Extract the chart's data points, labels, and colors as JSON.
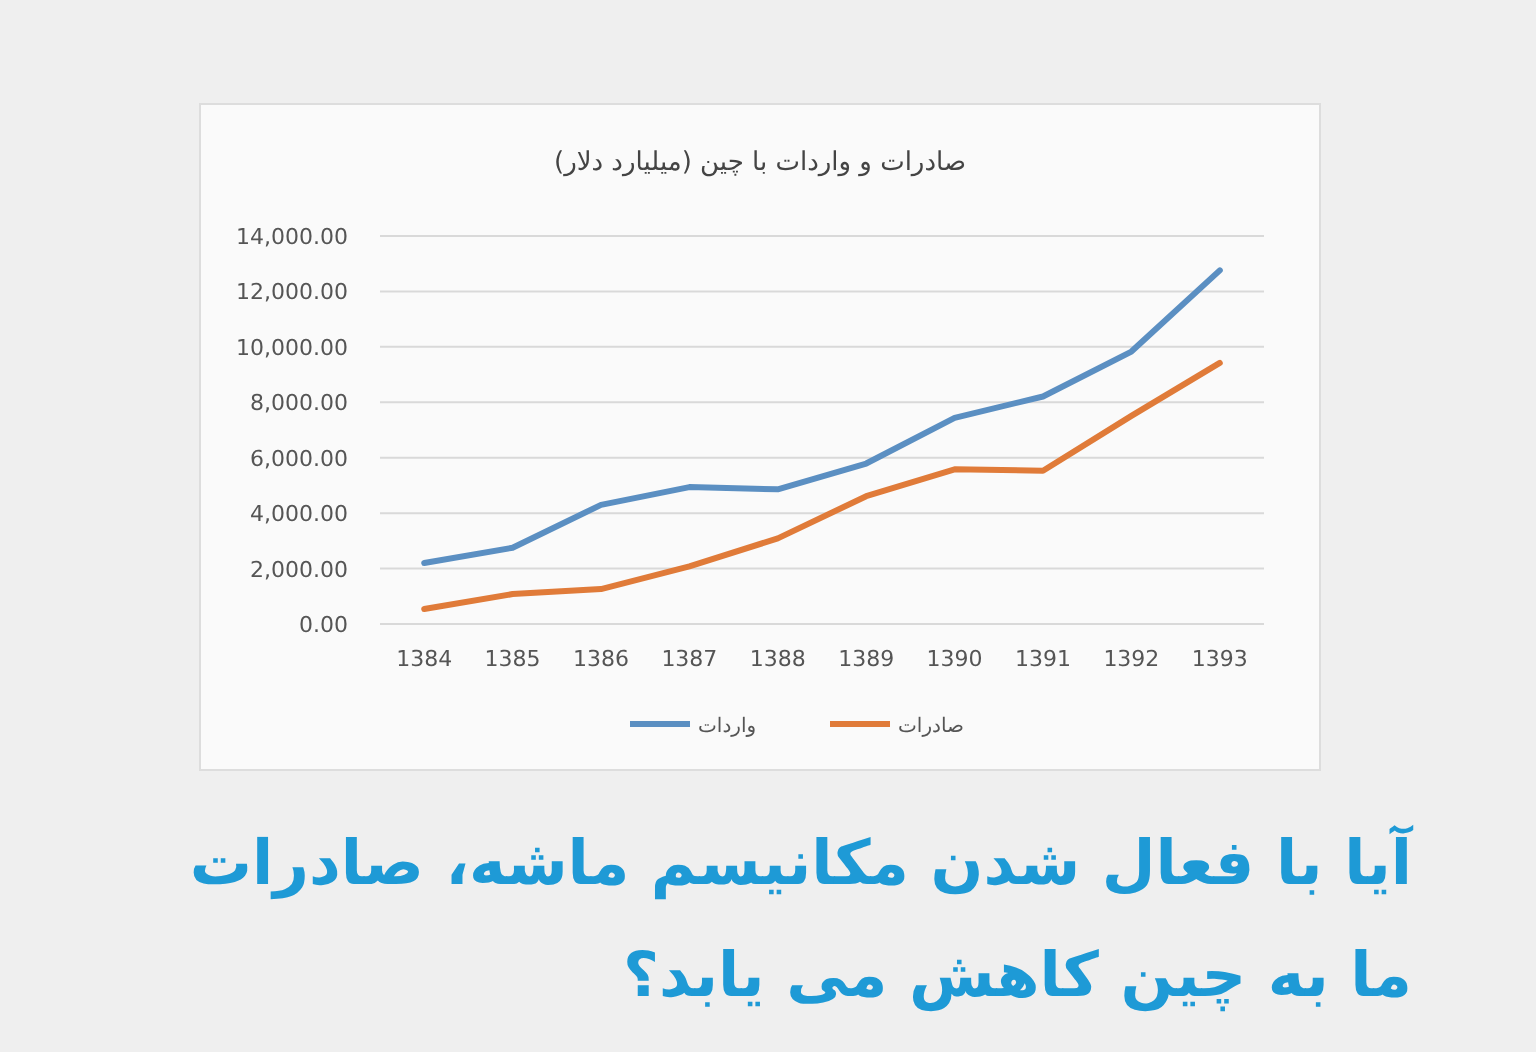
{
  "chart_data": {
    "type": "line",
    "title": "صادرات و واردات با چین (میلیارد دلار)",
    "categories": [
      "1384",
      "1385",
      "1386",
      "1387",
      "1388",
      "1389",
      "1390",
      "1391",
      "1392",
      "1393"
    ],
    "series": [
      {
        "name": "واردات",
        "color": "#5b8fc2",
        "values": [
          2200,
          2750,
          4300,
          4940,
          4860,
          5790,
          7440,
          8210,
          9830,
          12760
        ]
      },
      {
        "name": "صادرات",
        "color": "#e07b39",
        "values": [
          540,
          1080,
          1260,
          2080,
          3090,
          4610,
          5580,
          5530,
          7510,
          9420
        ]
      }
    ],
    "ylim": [
      0,
      14000
    ],
    "yticks": [
      {
        "value": 0,
        "label": "0.00"
      },
      {
        "value": 2000,
        "label": "2,000.00"
      },
      {
        "value": 4000,
        "label": "4,000.00"
      },
      {
        "value": 6000,
        "label": "6,000.00"
      },
      {
        "value": 8000,
        "label": "8,000.00"
      },
      {
        "value": 10000,
        "label": "10,000.00"
      },
      {
        "value": 12000,
        "label": "12,000.00"
      },
      {
        "value": 14000,
        "label": "14,000.00"
      }
    ],
    "grid": "y",
    "legend": "bottom",
    "marker": "none",
    "line_style": "solid",
    "annotations": [
      "آیا با فعال شدن مکانیسم ماشه، صادرات ما به چین کاهش می یابد؟"
    ]
  }
}
